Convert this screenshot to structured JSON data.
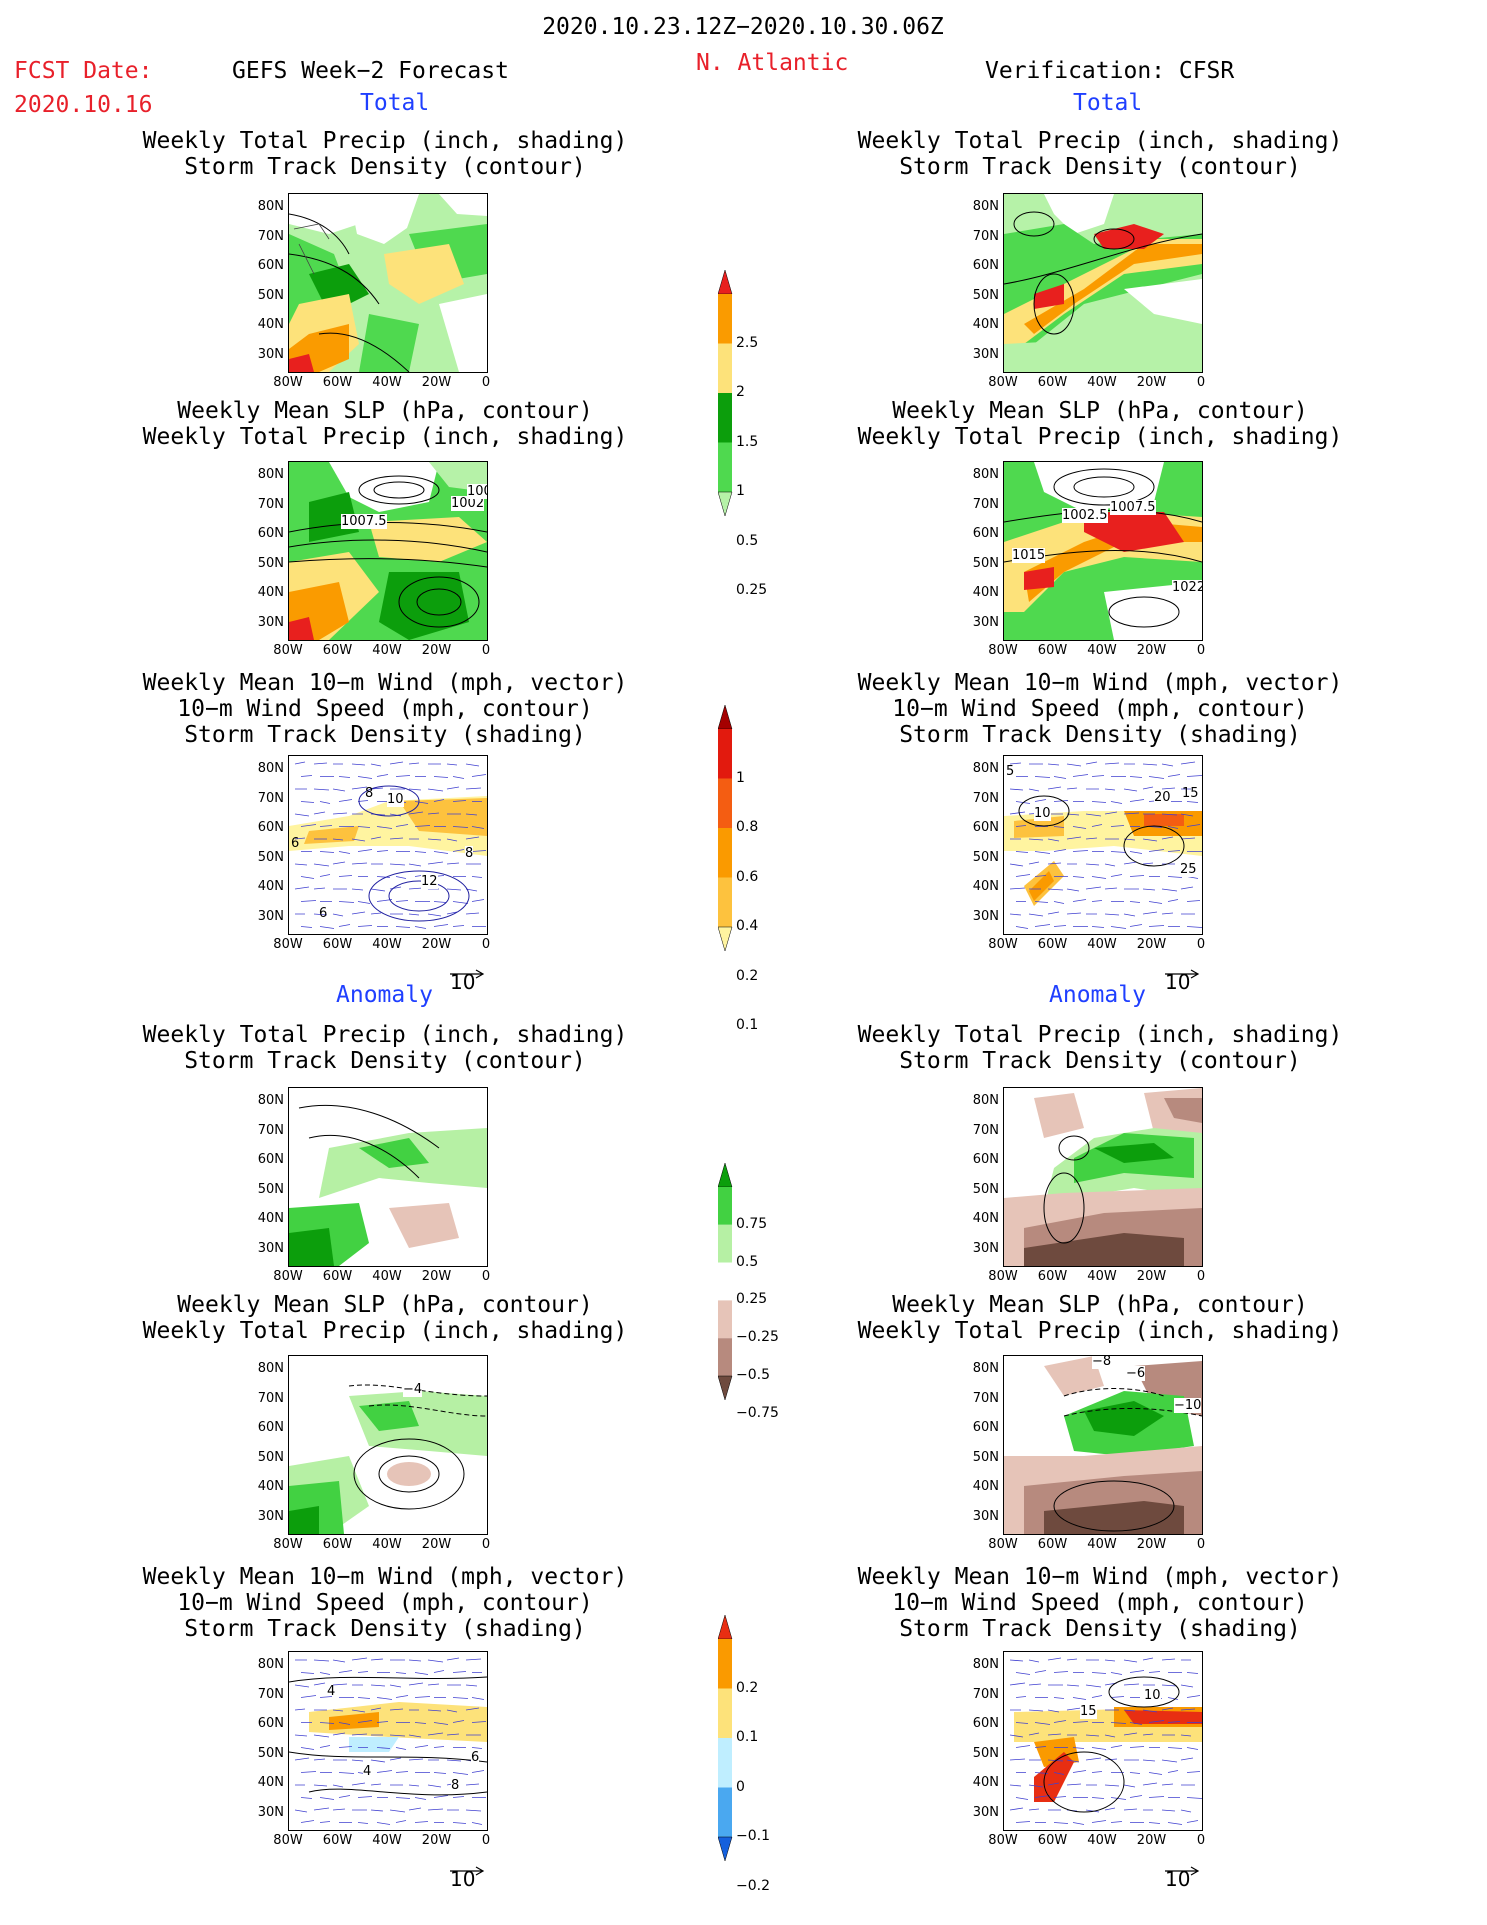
{
  "header": {
    "period": "2020.10.23.12Z−2020.10.30.06Z",
    "fcst_label": "FCST Date:",
    "fcst_date": "2020.10.16",
    "left_title": "GEFS Week−2 Forecast",
    "region": "N. Atlantic",
    "right_title": "Verification: CFSR"
  },
  "sections": {
    "total": "Total",
    "anomaly": "Anomaly"
  },
  "panel_titles": {
    "precip_storm": [
      "Weekly Total Precip (inch, shading)",
      "Storm Track Density (contour)"
    ],
    "slp_precip": [
      "Weekly Mean SLP (hPa, contour)",
      "Weekly Total Precip (inch, shading)"
    ],
    "wind_storm": [
      "Weekly Mean 10−m Wind (mph, vector)",
      "10−m Wind Speed (mph, contour)",
      "Storm Track Density (shading)"
    ]
  },
  "axes": {
    "lat_ticks": [
      "80N",
      "70N",
      "60N",
      "50N",
      "40N",
      "30N"
    ],
    "lon_ticks": [
      "80W",
      "60W",
      "40W",
      "20W",
      "0"
    ]
  },
  "vector_reference": "10",
  "colorbars": {
    "precip_total": {
      "labels": [
        "2.5",
        "2",
        "1.5",
        "1",
        "0.5",
        "0.25"
      ],
      "colors": [
        "#e8201e",
        "#fa9b00",
        "#fde27a",
        "#0c9e0c",
        "#4fd94f",
        "#b6f2a8"
      ]
    },
    "storm_total": {
      "labels": [
        "1",
        "0.8",
        "0.6",
        "0.4",
        "0.2",
        "0.1"
      ],
      "colors": [
        "#a40000",
        "#e21a0e",
        "#f45d12",
        "#fa9a00",
        "#fdc23e",
        "#fff4a0"
      ]
    },
    "precip_anom": {
      "labels": [
        "0.75",
        "0.5",
        "0.25",
        "−0.25",
        "−0.5",
        "−0.75"
      ],
      "colors": [
        "#0c9e0c",
        "#42d142",
        "#b6f0a4",
        "#ffffff",
        "#e6c4b8",
        "#b78a7e",
        "#6e4a3e"
      ]
    },
    "storm_anom": {
      "labels": [
        "0.2",
        "0.1",
        "0",
        "−0.1",
        "−0.2"
      ],
      "colors": [
        "#e82e12",
        "#fa9a00",
        "#fde27a",
        "#bfeeff",
        "#4aa8f0",
        "#1560dd"
      ]
    }
  },
  "contour_labels": {
    "p2_gefs": [
      "1007.5",
      "1002",
      "100"
    ],
    "p2_cfsr": [
      "1002.5",
      "1007.5",
      "1015",
      "1022"
    ],
    "p3_gefs": [
      "10",
      "8",
      "8",
      "12",
      "6",
      "6"
    ],
    "p3_cfsr": [
      "5",
      "10",
      "20",
      "15",
      "25"
    ],
    "p5_gefs": [
      "−4"
    ],
    "p5_cfsr": [
      "−8",
      "−6",
      "−10"
    ],
    "p6_gefs": [
      "4",
      "6",
      "8",
      "4"
    ],
    "p6_cfsr": [
      "15",
      "10"
    ]
  }
}
